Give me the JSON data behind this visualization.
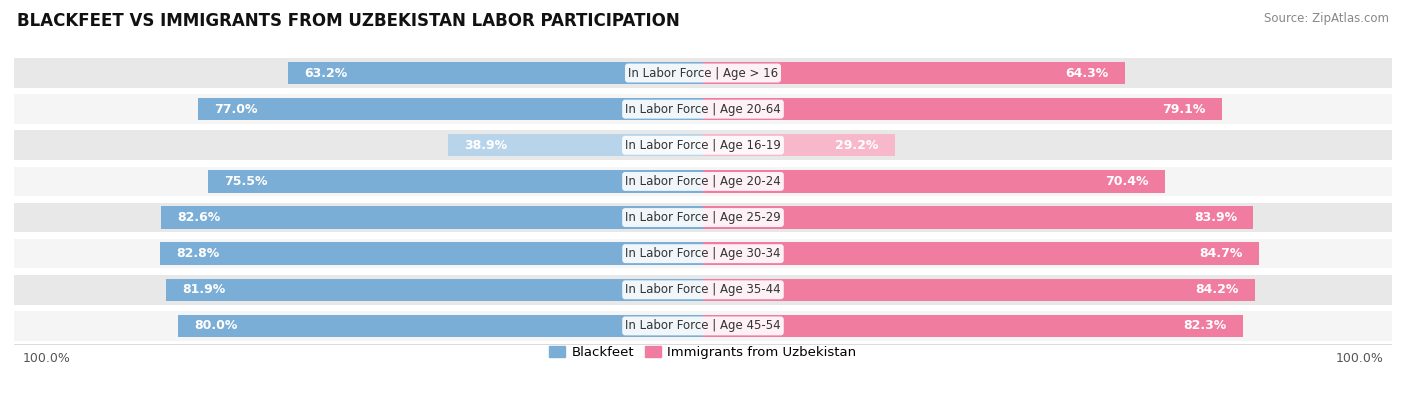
{
  "title": "BLACKFEET VS IMMIGRANTS FROM UZBEKISTAN LABOR PARTICIPATION",
  "source": "Source: ZipAtlas.com",
  "categories": [
    "In Labor Force | Age > 16",
    "In Labor Force | Age 20-64",
    "In Labor Force | Age 16-19",
    "In Labor Force | Age 20-24",
    "In Labor Force | Age 25-29",
    "In Labor Force | Age 30-34",
    "In Labor Force | Age 35-44",
    "In Labor Force | Age 45-54"
  ],
  "blackfeet_values": [
    63.2,
    77.0,
    38.9,
    75.5,
    82.6,
    82.8,
    81.9,
    80.0
  ],
  "uzbekistan_values": [
    64.3,
    79.1,
    29.2,
    70.4,
    83.9,
    84.7,
    84.2,
    82.3
  ],
  "blackfeet_color": "#7aaed6",
  "blackfeet_color_light": "#b8d4ea",
  "uzbekistan_color": "#f07ca0",
  "uzbekistan_color_light": "#f7b8cc",
  "background_color": "#ffffff",
  "row_bg_dark": "#e8e8e8",
  "row_bg_light": "#f5f5f5",
  "max_value": 100.0,
  "legend_blackfeet": "Blackfeet",
  "legend_uzbekistan": "Immigrants from Uzbekistan",
  "label_fontsize": 9.0,
  "title_fontsize": 12,
  "source_fontsize": 8.5,
  "cat_fontsize": 8.5
}
